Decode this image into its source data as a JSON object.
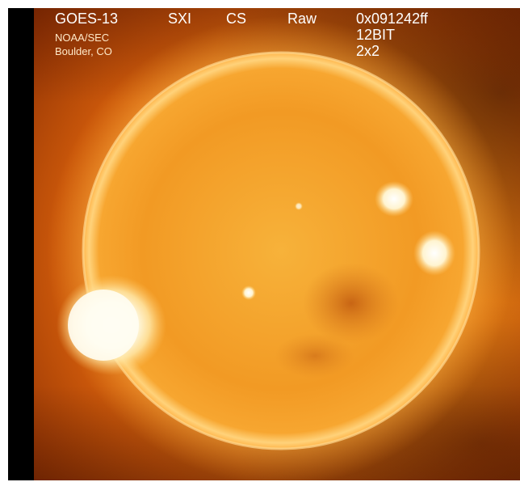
{
  "header": {
    "satellite": "GOES-13",
    "instrument": "SXI",
    "mode": "CS",
    "format": "Raw",
    "hex_id": "0x091242ff",
    "bit_depth": "12BIT",
    "binning": "2x2",
    "org": "NOAA/SEC",
    "location": "Boulder, CO"
  },
  "colors": {
    "text": "#ffffff",
    "disk_core": "#f7b23a",
    "disk_edge": "#ef8a1a",
    "flare": "#fffbe8",
    "background": "#000000"
  }
}
